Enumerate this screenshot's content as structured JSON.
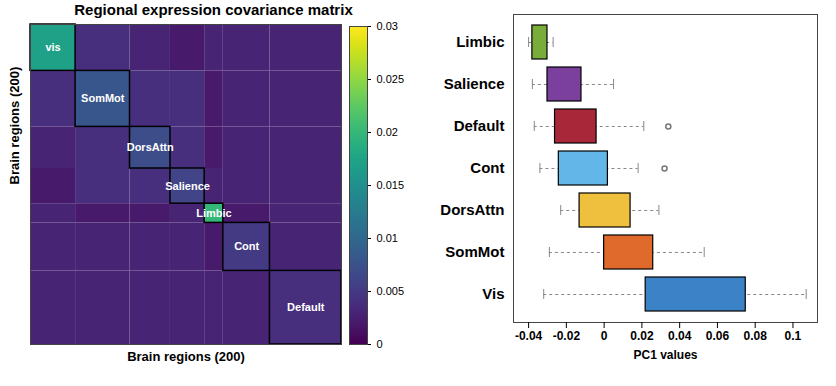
{
  "chart_data": [
    {
      "type": "heatmap",
      "title": "Regional expression covariance matrix",
      "xlabel": "Brain regions (200)",
      "ylabel": "Brain regions (200)",
      "xlim": [
        0,
        200
      ],
      "ylim": [
        0,
        200
      ],
      "tick_labels": false,
      "color": "viridis",
      "networks": [
        "vis",
        "SomMot",
        "DorsAttn",
        "Salience",
        "Limbic",
        "Cont",
        "Default"
      ],
      "network_sizes": [
        29,
        35,
        26,
        22,
        12,
        30,
        46
      ],
      "cells": [
        [
          0.017,
          0.004,
          0.003,
          0.002,
          0.003,
          0.003,
          0.003
        ],
        [
          0.004,
          0.008,
          0.004,
          0.004,
          0.002,
          0.003,
          0.003
        ],
        [
          0.003,
          0.004,
          0.007,
          0.004,
          0.002,
          0.003,
          0.003
        ],
        [
          0.002,
          0.004,
          0.004,
          0.006,
          0.003,
          0.003,
          0.003
        ],
        [
          0.003,
          0.002,
          0.002,
          0.003,
          0.02,
          0.002,
          0.003
        ],
        [
          0.003,
          0.003,
          0.003,
          0.003,
          0.002,
          0.005,
          0.003
        ],
        [
          0.003,
          0.003,
          0.003,
          0.003,
          0.003,
          0.003,
          0.004
        ]
      ],
      "colorbar": {
        "range": [
          0,
          0.03
        ],
        "ticks": [
          0,
          0.005,
          0.01,
          0.015,
          0.02,
          0.025,
          0.03
        ]
      }
    },
    {
      "type": "box",
      "orientation": "horizontal",
      "xlabel": "PC1 values",
      "categories": [
        "Limbic",
        "Salience",
        "Default",
        "Cont",
        "DorsAttn",
        "SomMot",
        "Vis"
      ],
      "colors": [
        "#7aac3c",
        "#7b3f9e",
        "#a8283a",
        "#62b6e8",
        "#efc03e",
        "#df6a2b",
        "#3c82c6"
      ],
      "whisker_low": [
        -0.04,
        -0.038,
        -0.037,
        -0.034,
        -0.023,
        -0.029,
        -0.032
      ],
      "q1": [
        -0.038,
        -0.03,
        -0.026,
        -0.024,
        -0.013,
        0.0,
        0.022
      ],
      "q3": [
        -0.03,
        -0.012,
        -0.004,
        0.002,
        0.014,
        0.026,
        0.075
      ],
      "whisker_high": [
        -0.027,
        0.005,
        0.021,
        0.018,
        0.029,
        0.053,
        0.107
      ],
      "outliers": [
        [],
        [],
        [
          0.034
        ],
        [
          0.032
        ],
        [],
        [],
        []
      ],
      "xlim": [
        -0.048,
        0.113
      ],
      "xticks": [
        -0.04,
        -0.02,
        0,
        0.02,
        0.04,
        0.06,
        0.08,
        0.1
      ]
    }
  ]
}
